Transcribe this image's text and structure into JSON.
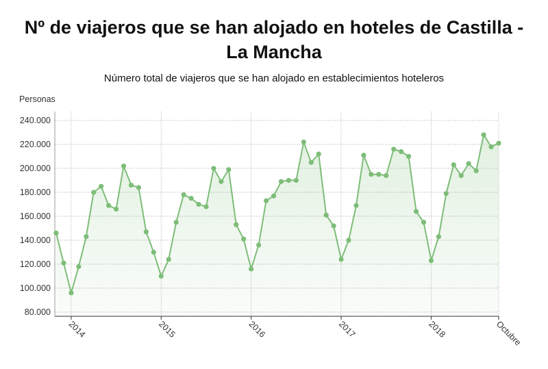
{
  "chart_data": {
    "type": "line",
    "title": "Nº de viajeros que se han alojado en hoteles de Castilla - La Mancha",
    "subtitle": "Número total de viajeros que se han alojado en establecimientos hoteleros",
    "y_label": "Personas",
    "categories": [
      null,
      null,
      "2014",
      null,
      null,
      null,
      null,
      null,
      null,
      null,
      null,
      null,
      null,
      null,
      "2015",
      null,
      null,
      null,
      null,
      null,
      null,
      null,
      null,
      null,
      null,
      null,
      "2016",
      null,
      null,
      null,
      null,
      null,
      null,
      null,
      null,
      null,
      null,
      null,
      "2017",
      null,
      null,
      null,
      null,
      null,
      null,
      null,
      null,
      null,
      null,
      null,
      "2018",
      null,
      null,
      null,
      null,
      null,
      null,
      null,
      null,
      "Octubre"
    ],
    "series": [
      {
        "name": "Personas",
        "color": "#7dbd78",
        "values": [
          146000,
          121000,
          96000,
          118000,
          143000,
          180000,
          185000,
          169000,
          166000,
          202000,
          186000,
          184000,
          147000,
          130000,
          110000,
          124000,
          155000,
          178000,
          175000,
          170000,
          168000,
          200000,
          189000,
          199000,
          153000,
          141000,
          116000,
          136000,
          173000,
          177000,
          189000,
          190000,
          190000,
          222000,
          205000,
          212000,
          161000,
          152000,
          124000,
          140000,
          169000,
          211000,
          195000,
          195000,
          194000,
          216000,
          214000,
          210000,
          164000,
          155000,
          123000,
          143000,
          179000,
          203000,
          194000,
          204000,
          198000,
          228000,
          218000,
          221000
        ]
      }
    ],
    "ylim": [
      76500,
      247400
    ],
    "yticks": [
      {
        "value": 80000,
        "label": "80.000"
      },
      {
        "value": 100000,
        "label": "100.000"
      },
      {
        "value": 120000,
        "label": "120.000"
      },
      {
        "value": 140000,
        "label": "140.000"
      },
      {
        "value": 160000,
        "label": "160.000"
      },
      {
        "value": 180000,
        "label": "180.000"
      },
      {
        "value": 200000,
        "label": "200.000"
      },
      {
        "value": 220000,
        "label": "220.000"
      },
      {
        "value": 240000,
        "label": "240.000"
      }
    ],
    "grid": true
  }
}
